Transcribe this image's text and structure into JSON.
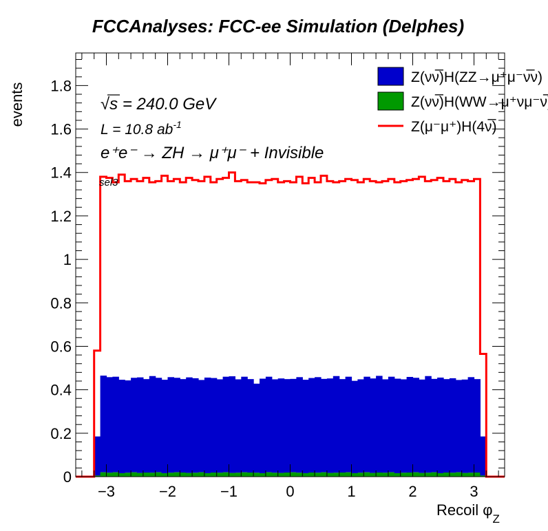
{
  "chart_data": {
    "type": "bar",
    "title": "FCCAnalyses: FCC-ee Simulation (Delphes)",
    "xlabel": "Recoil φ",
    "xlabel_sub": "Z",
    "ylabel": "events",
    "xlim": [
      -3.5,
      3.5
    ],
    "ylim": [
      0,
      1.95
    ],
    "x_ticks": [
      -3,
      -2,
      -1,
      0,
      1,
      2,
      3
    ],
    "x_tick_labels": [
      "−3",
      "−2",
      "−1",
      "0",
      "1",
      "2",
      "3"
    ],
    "y_ticks": [
      0,
      0.2,
      0.4,
      0.6,
      0.8,
      1,
      1.2,
      1.4,
      1.6,
      1.8
    ],
    "y_tick_labels": [
      "0",
      "0.2",
      "0.4",
      "0.6",
      "0.8",
      "1",
      "1.2",
      "1.4",
      "1.6",
      "1.8"
    ],
    "bins": {
      "min": -3.2,
      "max": 3.2,
      "count": 64
    },
    "annotations": {
      "sqrt_s": "s = 240.0 GeV",
      "lumi": "L = 10.8 ab",
      "lumi_exp": "-1",
      "process": "e⁺e⁻ → ZH → μ⁺μ⁻ + Invisible",
      "selection": "sel3"
    },
    "series": [
      {
        "name": "Z(νν̅)H(ZZ→μ⁺μ⁻ν̅ν)",
        "style": "filled",
        "color": "#0000cc",
        "values": [
          0.18,
          0.445,
          0.44,
          0.44,
          0.43,
          0.425,
          0.435,
          0.44,
          0.43,
          0.445,
          0.435,
          0.43,
          0.44,
          0.435,
          0.43,
          0.44,
          0.435,
          0.425,
          0.44,
          0.435,
          0.43,
          0.44,
          0.445,
          0.43,
          0.44,
          0.43,
          0.41,
          0.435,
          0.44,
          0.43,
          0.435,
          0.43,
          0.43,
          0.44,
          0.43,
          0.435,
          0.44,
          0.43,
          0.435,
          0.445,
          0.43,
          0.44,
          0.425,
          0.43,
          0.44,
          0.435,
          0.445,
          0.43,
          0.44,
          0.435,
          0.43,
          0.44,
          0.435,
          0.43,
          0.445,
          0.43,
          0.44,
          0.43,
          0.435,
          0.425,
          0.43,
          0.44,
          0.43,
          0.18
        ]
      },
      {
        "name": "Z(νν̅)H(WW→μ⁺νμ⁻ν̅)",
        "style": "filled",
        "color": "#009900",
        "values": [
          0.005,
          0.02,
          0.018,
          0.02,
          0.016,
          0.018,
          0.02,
          0.017,
          0.019,
          0.018,
          0.02,
          0.016,
          0.018,
          0.02,
          0.019,
          0.017,
          0.018,
          0.02,
          0.016,
          0.019,
          0.018,
          0.02,
          0.017,
          0.018,
          0.02,
          0.019,
          0.018,
          0.016,
          0.02,
          0.018,
          0.017,
          0.019,
          0.02,
          0.018,
          0.016,
          0.019,
          0.018,
          0.02,
          0.017,
          0.018,
          0.019,
          0.02,
          0.016,
          0.018,
          0.02,
          0.017,
          0.019,
          0.018,
          0.02,
          0.016,
          0.018,
          0.019,
          0.02,
          0.017,
          0.018,
          0.02,
          0.016,
          0.019,
          0.018,
          0.02,
          0.017,
          0.018,
          0.019,
          0.005
        ]
      },
      {
        "name": "Z(μ⁻μ⁺)H(4ν)",
        "style": "line",
        "color": "#ff0000",
        "values": [
          0.58,
          1.38,
          1.375,
          1.355,
          1.39,
          1.36,
          1.37,
          1.36,
          1.375,
          1.355,
          1.36,
          1.385,
          1.36,
          1.37,
          1.355,
          1.375,
          1.365,
          1.36,
          1.38,
          1.355,
          1.37,
          1.375,
          1.4,
          1.36,
          1.365,
          1.355,
          1.355,
          1.35,
          1.365,
          1.37,
          1.355,
          1.36,
          1.355,
          1.38,
          1.35,
          1.375,
          1.355,
          1.385,
          1.36,
          1.355,
          1.36,
          1.37,
          1.365,
          1.355,
          1.37,
          1.36,
          1.355,
          1.36,
          1.37,
          1.355,
          1.36,
          1.365,
          1.37,
          1.38,
          1.36,
          1.365,
          1.375,
          1.36,
          1.37,
          1.355,
          1.365,
          1.36,
          1.37,
          0.565
        ]
      }
    ]
  },
  "legend": {
    "entries": [
      {
        "label": "Z(νν̅)H(ZZ→μ⁺μ⁻ν̅ν)",
        "color": "#0000cc",
        "style": "box"
      },
      {
        "label": "Z(νν̅)H(WW→μ⁺νμ⁻ν̅)",
        "color": "#009900",
        "style": "box"
      },
      {
        "label": "Z(μ⁻μ⁺)H(4ν̅)",
        "color": "#ff0000",
        "style": "line"
      }
    ]
  }
}
